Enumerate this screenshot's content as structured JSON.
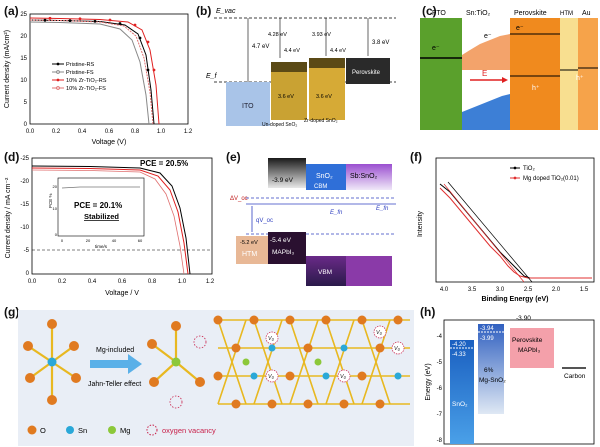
{
  "labels": {
    "a": "(a)",
    "b": "(b)",
    "c": "(c)",
    "d": "(d)",
    "e": "(e)",
    "f": "(f)",
    "g": "(g)",
    "h": "(h)"
  },
  "panel_a": {
    "ylabel": "Current density (mA/cm²)",
    "xlabel": "Voltage (V)",
    "yticks": [
      "25",
      "20",
      "15",
      "10",
      "5",
      "0"
    ],
    "xticks": [
      "0.0",
      "0.2",
      "0.4",
      "0.6",
      "0.8",
      "1.0",
      "1.2"
    ],
    "legend": [
      "Pristine-RS",
      "Pristine-FS",
      "10% Zr-TiO₂-RS",
      "10% Zr-TiO₂-FS"
    ],
    "colors": [
      "#000000",
      "#666666",
      "#e02020",
      "#e07070"
    ]
  },
  "panel_b": {
    "evac": "E_vac",
    "ef": "E_f",
    "ito": "ITO",
    "e1": "4.7 eV",
    "e2": "4.28 eV",
    "e3": "3.93 eV",
    "e4": "3.8 eV",
    "e5": "4.4 eV",
    "e6": "4.4 eV",
    "e7": "3.6 eV",
    "e8": "3.6 eV",
    "undoped": "Un-doped SnO₂",
    "zrdoped": "Zr-doped SnO₂",
    "perovskite": "Perovskite"
  },
  "panel_c": {
    "fto": "FTO",
    "sntio": "Sn:TiO₂",
    "perovskite": "Perovskite",
    "htm": "HTM",
    "au": "Au",
    "field": "E",
    "e1": "e⁻",
    "e2": "e⁻",
    "e3": "e⁻",
    "h1": "h⁺",
    "h2": "h⁺"
  },
  "panel_d": {
    "pce": "PCE = 20.5%",
    "ylabel": "Current density / mA cm⁻²",
    "xlabel": "Voltage / V",
    "yticks": [
      "-25",
      "-20",
      "-15",
      "-10",
      "-5",
      "0"
    ],
    "xticks": [
      "0.0",
      "0.2",
      "0.4",
      "0.6",
      "0.8",
      "1.0",
      "1.2"
    ],
    "inset_pce": "PCE = 20.1%",
    "inset_stab": "Stabilized",
    "inset_ylabel": "PCE %",
    "inset_xlabel": "time/s",
    "inset_yticks": [
      "20",
      "10",
      "0"
    ],
    "inset_xticks": [
      "0",
      "20",
      "40",
      "60"
    ]
  },
  "panel_e": {
    "e1": "-3.9 eV",
    "sno2": "SnO₂",
    "sbsno2": "Sb:SnO₂",
    "cbm": "CBM",
    "dvoc": "ΔV_oc",
    "qvoc": "qV_oc",
    "en": "E_fn",
    "en2": "E_fn",
    "e2": "-5.4 eV",
    "htm": "HTM",
    "mapbi": "MAPbI₃",
    "vbm": "VBM",
    "e3": "-5.2 eV"
  },
  "panel_f": {
    "ylabel": "Intensity",
    "xlabel": "Binding Energy (eV)",
    "xticks": [
      "4.0",
      "3.5",
      "3.0",
      "2.5",
      "2.0",
      "1.5"
    ],
    "legend": [
      "TiO₂",
      "Mg doped TiO₂(0.01)"
    ]
  },
  "panel_g": {
    "mg_included": "Mg-included",
    "jt": "Jahn-Teller effect",
    "leg_o": "O",
    "leg_sn": "Sn",
    "leg_mg": "Mg",
    "leg_vac": "oxygen vacancy",
    "vo": "V₀"
  },
  "panel_h": {
    "ylabel": "Energy (eV)",
    "yticks": [
      "-4",
      "-5",
      "-6",
      "-7",
      "-8"
    ],
    "v1": "-4.20",
    "v2": "-4.33",
    "v3": "-3.94",
    "v4": "-3.99",
    "v5": "-3.90",
    "sno2": "SnO₂",
    "mgsno2a": "6%",
    "mgsno2b": "Mg-SnO₂",
    "pero_a": "Perovskite",
    "pero_b": "MAPbI₃",
    "carbon": "Carbon"
  }
}
